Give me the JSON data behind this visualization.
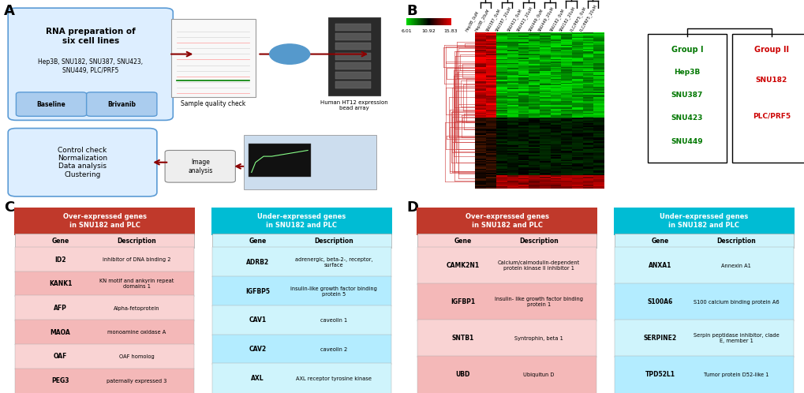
{
  "panel_A": {
    "label": "A",
    "box1_title": "RNA preparation of\nsix cell lines",
    "box1_sub": "Hep3B, SNU182, SNU387, SNU423,\nSNU449, PLC/PRF5",
    "btn1": "Baseline",
    "btn2": "Brivanib",
    "label_sample": "Sample quality check",
    "label_human": "Human HT12 expression\nbead array",
    "label_image": "Image\nanalysis",
    "box2_title": "Control check\nNormalization\nData analysis\nClustering"
  },
  "panel_B": {
    "label": "B",
    "colorbar_vals": [
      "6.01",
      "10.92",
      "15.83"
    ],
    "group1_title": "Group I",
    "group1_color": "#00aa00",
    "group1_members": [
      "Hep3B",
      "SNU387",
      "SNU423",
      "SNU449"
    ],
    "group2_title": "Group II",
    "group2_color": "#cc0000",
    "group2_members": [
      "SNU182",
      "PLC/PRF5"
    ]
  },
  "panel_C": {
    "label": "C",
    "over_title": "Over-expressed genes\nin SNU182 and PLC",
    "under_title": "Under-expressed genes\nin SNU182 and PLC",
    "over_header_bg": "#c0392b",
    "under_header_bg": "#00bcd4",
    "over_genes": [
      "ID2",
      "KANK1",
      "AFP",
      "MAOA",
      "OAF",
      "PEG3"
    ],
    "over_desc": [
      "inhibitor of DNA binding 2",
      "KN motif and ankyrin repeat\ndomains 1",
      "Alpha-fetoprotein",
      "monoamine oxidase A",
      "OAF homolog",
      "paternally expressed 3"
    ],
    "under_genes": [
      "ADRB2",
      "IGFBP5",
      "CAV1",
      "CAV2",
      "AXL"
    ],
    "under_desc": [
      "adrenergic, beta-2-, receptor,\nsurface",
      "insulin-like growth factor binding\nprotein 5",
      "caveolin 1",
      "caveolin 2",
      "AXL receptor tyrosine kinase"
    ]
  },
  "panel_D": {
    "label": "D",
    "over_title": "Over-expressed genes\nin SNU182 and PLC",
    "under_title": "Under-expressed genes\nin SNU182 and PLC",
    "over_header_bg": "#c0392b",
    "under_header_bg": "#00bcd4",
    "over_genes": [
      "CAMK2N1",
      "IGFBP1",
      "SNTB1",
      "UBD"
    ],
    "over_desc": [
      "Calcium/calmodulin-dependent\nprotein kinase II inhibitor 1",
      "Insulin- like growth factor binding\nprotein 1",
      "Syntrophin, beta 1",
      "Ubiquitun D"
    ],
    "under_genes": [
      "ANXA1",
      "S100A6",
      "SERPINE2",
      "TPD52L1"
    ],
    "under_desc": [
      "Annexin A1",
      "S100 calcium binding protein A6",
      "Serpin peptidase inhibitor, clade\nE, member 1",
      "Tumor protein D52-like 1"
    ]
  },
  "bg_color": "#ffffff"
}
